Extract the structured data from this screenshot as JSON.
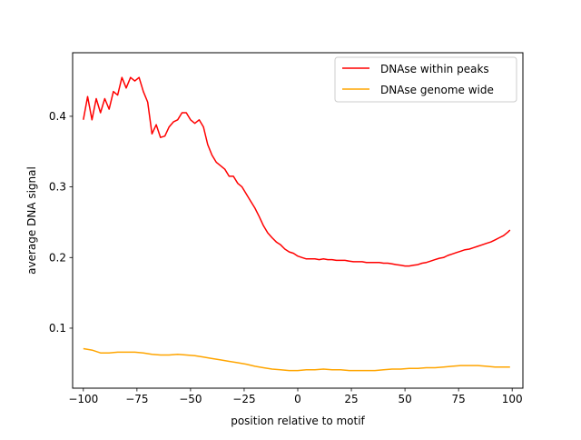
{
  "chart_data": {
    "type": "line",
    "title": "",
    "xlabel": "position relative to motif",
    "ylabel": "average DNA signal",
    "xlim": [
      -105,
      105
    ],
    "ylim": [
      0.015,
      0.49
    ],
    "xticks": [
      -100,
      -75,
      -50,
      -25,
      0,
      25,
      50,
      75,
      100
    ],
    "xtick_labels": [
      "−100",
      "−75",
      "−50",
      "−25",
      "0",
      "25",
      "50",
      "75",
      "100"
    ],
    "yticks": [
      0.1,
      0.2,
      0.3,
      0.4
    ],
    "ytick_labels": [
      "0.1",
      "0.2",
      "0.3",
      "0.4"
    ],
    "grid": false,
    "legend_position": "top-right",
    "series": [
      {
        "name": "DNAse within peaks",
        "color": "#ff0000",
        "x": [
          -100,
          -98,
          -96,
          -94,
          -92,
          -90,
          -88,
          -86,
          -84,
          -82,
          -80,
          -78,
          -76,
          -74,
          -72,
          -70,
          -68,
          -66,
          -64,
          -62,
          -60,
          -58,
          -56,
          -54,
          -52,
          -50,
          -48,
          -46,
          -44,
          -42,
          -40,
          -38,
          -36,
          -34,
          -32,
          -30,
          -28,
          -26,
          -24,
          -22,
          -20,
          -18,
          -16,
          -14,
          -12,
          -10,
          -8,
          -6,
          -4,
          -2,
          0,
          2,
          4,
          6,
          8,
          10,
          12,
          14,
          16,
          18,
          20,
          22,
          24,
          26,
          28,
          30,
          32,
          34,
          36,
          38,
          40,
          42,
          44,
          46,
          48,
          50,
          52,
          54,
          56,
          58,
          60,
          62,
          64,
          66,
          68,
          70,
          72,
          74,
          76,
          78,
          80,
          82,
          84,
          86,
          88,
          90,
          92,
          94,
          96,
          98,
          99
        ],
        "values": [
          0.395,
          0.428,
          0.395,
          0.425,
          0.405,
          0.425,
          0.41,
          0.435,
          0.43,
          0.455,
          0.44,
          0.455,
          0.45,
          0.455,
          0.435,
          0.42,
          0.375,
          0.388,
          0.37,
          0.372,
          0.385,
          0.392,
          0.395,
          0.405,
          0.405,
          0.395,
          0.39,
          0.395,
          0.385,
          0.36,
          0.345,
          0.335,
          0.33,
          0.325,
          0.315,
          0.315,
          0.305,
          0.3,
          0.29,
          0.28,
          0.27,
          0.258,
          0.245,
          0.235,
          0.228,
          0.222,
          0.218,
          0.212,
          0.208,
          0.206,
          0.202,
          0.2,
          0.198,
          0.198,
          0.198,
          0.197,
          0.198,
          0.197,
          0.197,
          0.196,
          0.196,
          0.196,
          0.195,
          0.194,
          0.194,
          0.194,
          0.193,
          0.193,
          0.193,
          0.193,
          0.192,
          0.192,
          0.191,
          0.19,
          0.189,
          0.188,
          0.188,
          0.189,
          0.19,
          0.192,
          0.193,
          0.195,
          0.197,
          0.199,
          0.2,
          0.203,
          0.205,
          0.207,
          0.209,
          0.211,
          0.212,
          0.214,
          0.216,
          0.218,
          0.22,
          0.222,
          0.225,
          0.228,
          0.231,
          0.236,
          0.239
        ]
      },
      {
        "name": "DNAse genome wide",
        "color": "#ffa500",
        "x": [
          -100,
          -96,
          -92,
          -88,
          -84,
          -80,
          -76,
          -72,
          -68,
          -64,
          -60,
          -56,
          -52,
          -48,
          -44,
          -40,
          -36,
          -32,
          -28,
          -24,
          -20,
          -16,
          -12,
          -8,
          -4,
          0,
          4,
          8,
          12,
          16,
          20,
          24,
          28,
          32,
          36,
          40,
          44,
          48,
          52,
          56,
          60,
          64,
          68,
          72,
          76,
          80,
          84,
          88,
          92,
          96,
          99
        ],
        "values": [
          0.071,
          0.069,
          0.065,
          0.065,
          0.066,
          0.066,
          0.066,
          0.065,
          0.063,
          0.062,
          0.062,
          0.063,
          0.062,
          0.061,
          0.059,
          0.057,
          0.055,
          0.053,
          0.051,
          0.049,
          0.046,
          0.044,
          0.042,
          0.041,
          0.04,
          0.04,
          0.041,
          0.041,
          0.042,
          0.041,
          0.041,
          0.04,
          0.04,
          0.04,
          0.04,
          0.041,
          0.042,
          0.042,
          0.043,
          0.043,
          0.044,
          0.044,
          0.045,
          0.046,
          0.047,
          0.047,
          0.047,
          0.046,
          0.045,
          0.045,
          0.045
        ]
      }
    ]
  }
}
